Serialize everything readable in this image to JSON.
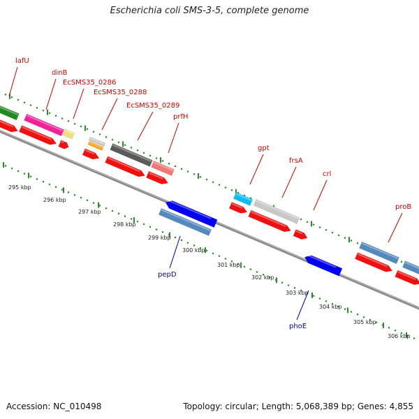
{
  "title": "Escherichia coli SMS-3-5, complete genome",
  "footer": {
    "accession": "Accession: NC_010498",
    "summary": "Topology: circular; Length: 5,068,389 bp; Genes: 4,855"
  },
  "colors": {
    "backbone": "#8a8a8a",
    "tick_dots": "#2f8a2f",
    "top_label": "#cc0000",
    "bottom_label": "#0000aa",
    "cds_red": "#ee1111",
    "pink": "#ee2299",
    "green": "#228822",
    "yellow": "#eedd88",
    "gray_light": "#c8c8c8",
    "gray_dark": "#5a5a5a",
    "salmon": "#ee7777",
    "cyan": "#11bbee",
    "steel": "#5588bb",
    "blue": "#0000ee",
    "orange": "#ff9900"
  },
  "kbp_ticks": [
    {
      "text": "295 kbp"
    },
    {
      "text": "296 kbp"
    },
    {
      "text": "297 kbp"
    },
    {
      "text": "298 kbp"
    },
    {
      "text": "299 kbp"
    },
    {
      "text": "300 kbp"
    },
    {
      "text": "301 kbp"
    },
    {
      "text": "302 kbp"
    },
    {
      "text": "303 kbp"
    },
    {
      "text": "304 kbp"
    },
    {
      "text": "305 kbp"
    },
    {
      "text": "306 kbp"
    }
  ],
  "top_genes": [
    {
      "label": "lafU"
    },
    {
      "label": "dinB"
    },
    {
      "label": "EcSMS35_0286"
    },
    {
      "label": "EcSMS35_0288"
    },
    {
      "label": "EcSMS35_0289"
    },
    {
      "label": "prfH"
    },
    {
      "label": "gpt"
    },
    {
      "label": "frsA"
    },
    {
      "label": "crl"
    },
    {
      "label": "proB"
    }
  ],
  "bottom_genes": [
    {
      "label": "pepD"
    },
    {
      "label": "phoE"
    }
  ]
}
